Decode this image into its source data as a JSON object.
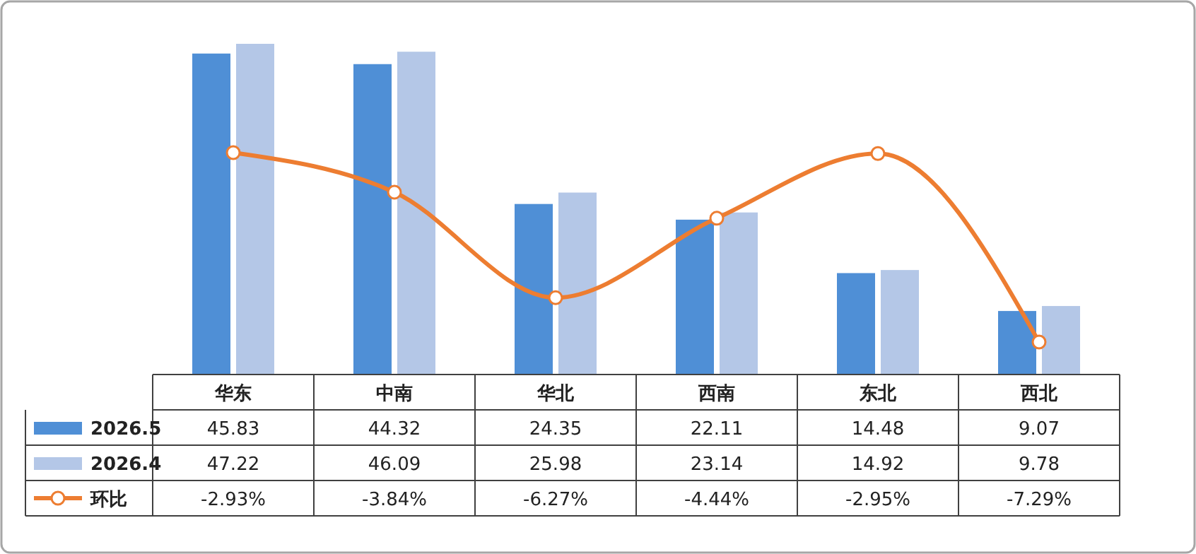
{
  "chart_data": {
    "type": "bar",
    "categories": [
      "华东",
      "中南",
      "华北",
      "西南",
      "东北",
      "西北"
    ],
    "series": [
      {
        "name": "2026.5",
        "color": "#4f8fd6",
        "values": [
          45.83,
          44.32,
          24.35,
          22.11,
          14.48,
          9.07
        ],
        "value_labels": [
          "45.83",
          "44.32",
          "24.35",
          "22.11",
          "14.48",
          "9.07"
        ]
      },
      {
        "name": "2026.4",
        "color": "#b4c7e7",
        "values": [
          47.22,
          46.09,
          25.98,
          23.14,
          14.92,
          9.78
        ],
        "value_labels": [
          "47.22",
          "46.09",
          "25.98",
          "23.14",
          "14.92",
          "9.78"
        ]
      },
      {
        "name": "环比",
        "type": "line",
        "axis": "y2",
        "color": "#ed7d31",
        "values": [
          -2.93,
          -3.84,
          -6.27,
          -4.44,
          -2.95,
          -7.29
        ],
        "value_labels": [
          "-2.93%",
          "-3.84%",
          "-6.27%",
          "-4.44%",
          "-2.95%",
          "-7.29%"
        ]
      }
    ],
    "tick_labels": "x",
    "legend": "bottom left",
    "marker": "circle"
  }
}
